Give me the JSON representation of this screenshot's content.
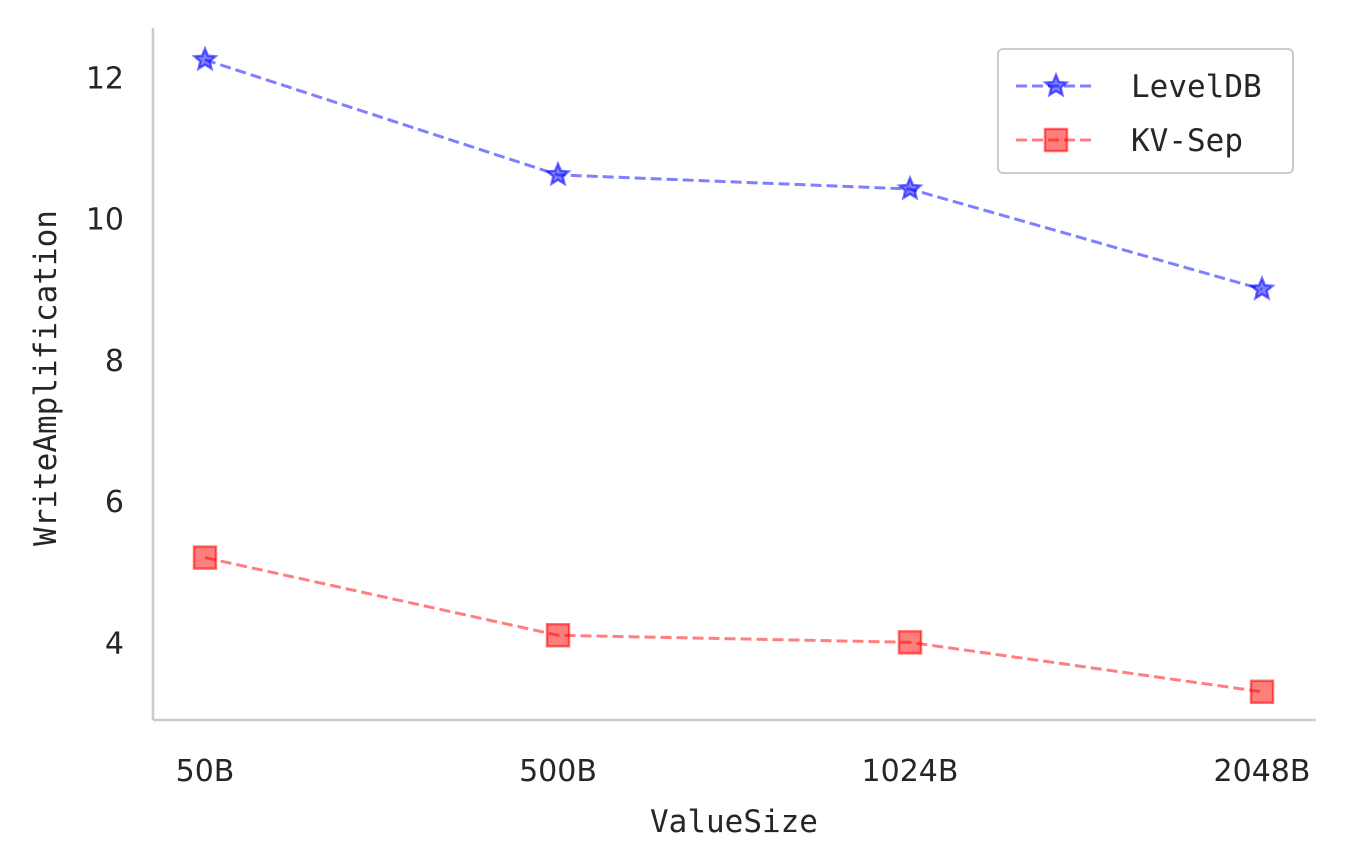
{
  "chart_data": {
    "type": "line",
    "categories": [
      "50B",
      "500B",
      "1024B",
      "2048B"
    ],
    "series": [
      {
        "name": "LevelDB",
        "values": [
          12.25,
          10.62,
          10.42,
          9.0
        ],
        "color": "#0000ff",
        "marker": "star",
        "line_style": "dashed"
      },
      {
        "name": "KV-Sep",
        "values": [
          5.2,
          4.1,
          4.0,
          3.3
        ],
        "color": "#ff0000",
        "marker": "square",
        "line_style": "dashed"
      }
    ],
    "xlabel": "ValueSize",
    "ylabel": "WriteAmplification",
    "ylim": [
      2.9,
      12.7
    ],
    "yticks": [
      4,
      6,
      8,
      10,
      12
    ],
    "grid": false,
    "legend_position": "top-right"
  }
}
